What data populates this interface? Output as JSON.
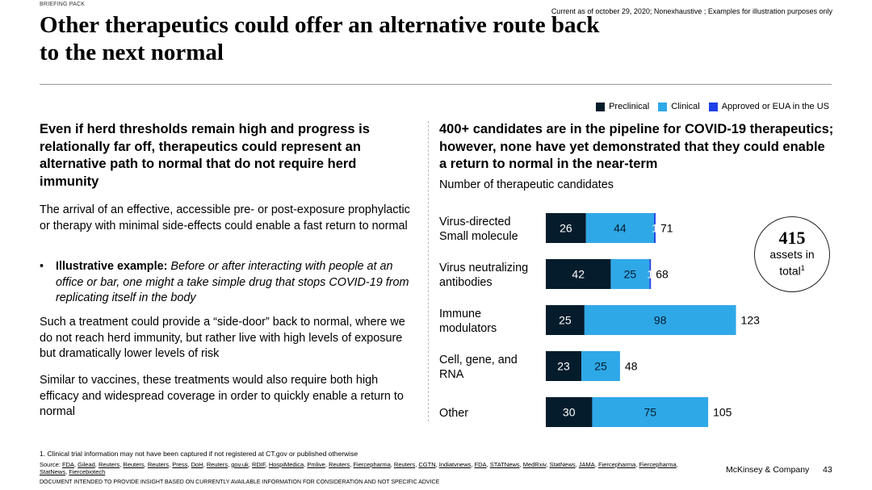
{
  "header": {
    "briefing": "BRIEFING PACK",
    "note": "Current as of october 29, 2020; Nonexhaustive ; Examples for illustration purposes only",
    "title": "Other therapeutics could offer an alternative route back to the next normal"
  },
  "left": {
    "heading": "Even if herd thresholds remain high and progress is relationally far off, therapeutics could represent an alternative path to normal that do not require herd immunity",
    "para1": "The arrival of an effective, accessible pre- or post-exposure prophylactic or therapy with minimal side-effects could enable a fast return to normal",
    "bullet_label": "Illustrative example:",
    "bullet_text": "Before or after interacting with people at an office or bar, one might a take simple drug that stops COVID-19 from replicating itself in the body",
    "para2": "Such a treatment could provide a “side-door” back to normal, where we do not reach herd immunity, but rather live with high levels of exposure but dramatically lower levels of risk",
    "para3": "Similar to vaccines, these treatments would also require both high efficacy and widespread coverage in order to quickly enable a return to normal"
  },
  "right": {
    "heading": "400+ candidates are in the pipeline for COVID-19 therapeutics; however, none have yet demonstrated that they could enable a return to normal in the near-term",
    "subtitle": "Number of therapeutic candidates",
    "total_value": "415",
    "total_label_line1": "assets in",
    "total_label_line2": "total",
    "total_sup": "1"
  },
  "chart_data": {
    "type": "bar",
    "orientation": "horizontal",
    "stacked": true,
    "title": "Number of therapeutic candidates",
    "categories": [
      "Virus-directed Small molecule",
      "Virus neutralizing antibodies",
      "Immune modulators",
      "Cell, gene, and RNA",
      "Other"
    ],
    "category_lines": [
      [
        "Virus-directed",
        "Small molecule"
      ],
      [
        "Virus neutralizing",
        "antibodies"
      ],
      [
        "Immune",
        "modulators"
      ],
      [
        "Cell, gene, and",
        "RNA"
      ],
      [
        "Other"
      ]
    ],
    "series": [
      {
        "name": "Preclinical",
        "color": "#051c2c",
        "label_color": "#ffffff",
        "values": [
          26,
          42,
          25,
          23,
          30
        ]
      },
      {
        "name": "Clinical",
        "color": "#2fa8e8",
        "label_color": "#051c2c",
        "values": [
          44,
          25,
          98,
          25,
          75
        ]
      },
      {
        "name": "Approved or EUA in the US",
        "color": "#1f40e6",
        "label_color": "#ffffff",
        "values": [
          1,
          1,
          0,
          0,
          0
        ]
      }
    ],
    "totals": [
      71,
      68,
      123,
      48,
      105
    ],
    "legend_position": "top-right"
  },
  "footer": {
    "footnote": "1. Clinical trial information may not have been captured if not registered at CT.gov or published otherwise",
    "source_label": "Source:",
    "sources": [
      "FDA",
      "Gilead",
      "Reuters",
      "Reuters",
      "Reuters",
      "Press",
      "DoH",
      "Reuters",
      "gov.uk",
      "RDIF",
      "HospiMedica",
      "Pmlive",
      "Reuters",
      "Fiercepharma",
      "Reuters",
      "CGTN",
      "Indiatvnews",
      "FDA",
      "STATNews",
      "MedRxiv",
      "StatNews",
      "JAMA",
      "Fiercepharma",
      "Fiercepharma",
      "StatNews",
      "Fiercebiotech"
    ],
    "disclaimer": "DOCUMENT INTENDED TO PROVIDE INSIGHT BASED ON CURRENTLY AVAILABLE INFORMATION FOR CONSIDERATION AND NOT SPECIFIC ADVICE",
    "brand": "McKinsey & Company",
    "page": "43"
  }
}
